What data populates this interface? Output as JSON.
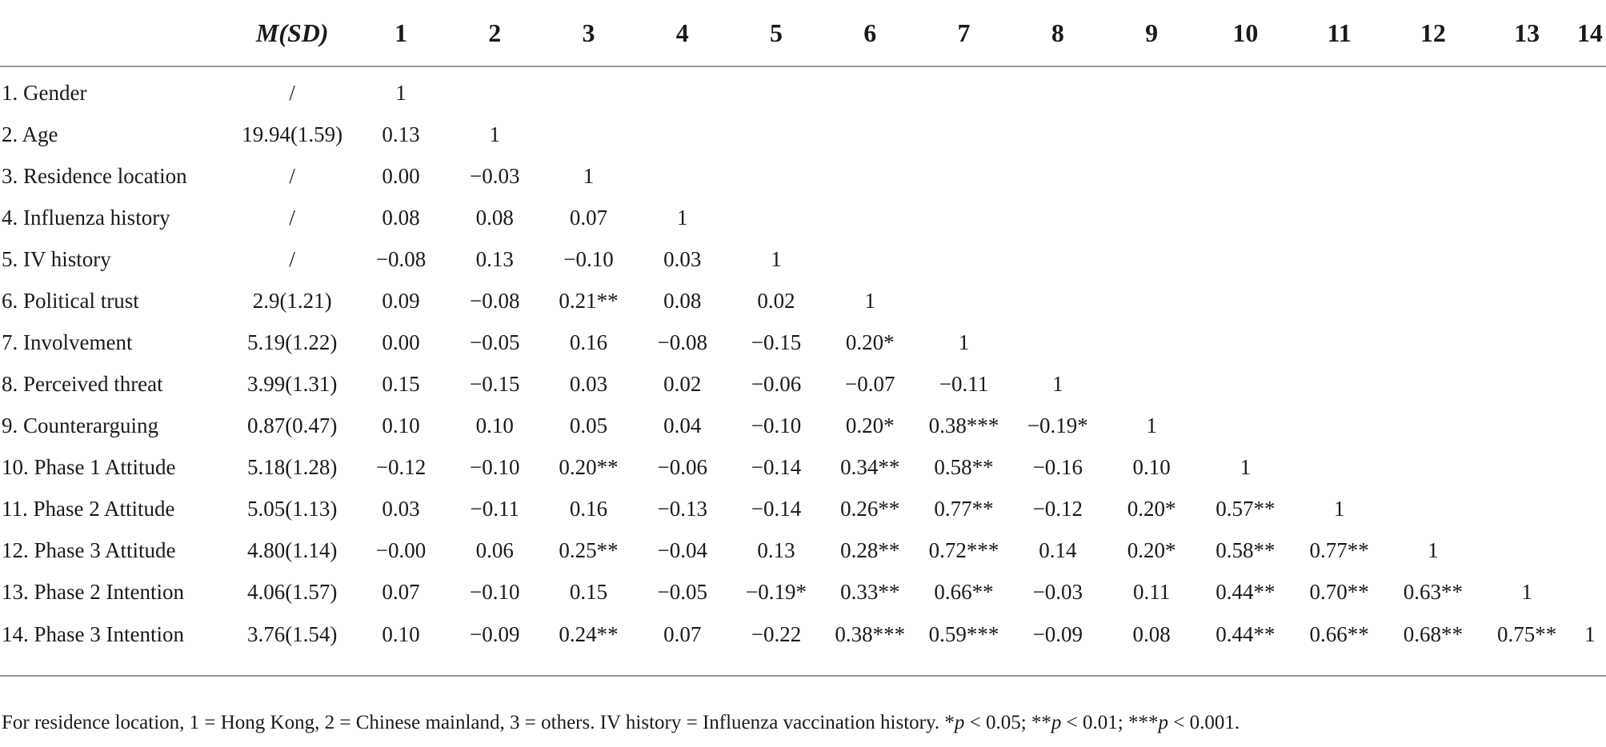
{
  "header": [
    "M(SD)",
    "1",
    "2",
    "3",
    "4",
    "5",
    "6",
    "7",
    "8",
    "9",
    "10",
    "11",
    "12",
    "13",
    "14"
  ],
  "rows": [
    {
      "label": "1. Gender",
      "msd": "/",
      "cells": [
        "1",
        "",
        "",
        "",
        "",
        "",
        "",
        "",
        "",
        "",
        "",
        "",
        "",
        ""
      ]
    },
    {
      "label": "2. Age",
      "msd": "19.94(1.59)",
      "cells": [
        "0.13",
        "1",
        "",
        "",
        "",
        "",
        "",
        "",
        "",
        "",
        "",
        "",
        "",
        ""
      ]
    },
    {
      "label": "3. Residence location",
      "msd": "/",
      "cells": [
        "0.00",
        "−0.03",
        "1",
        "",
        "",
        "",
        "",
        "",
        "",
        "",
        "",
        "",
        "",
        ""
      ]
    },
    {
      "label": "4. Influenza history",
      "msd": "/",
      "cells": [
        "0.08",
        "0.08",
        "0.07",
        "1",
        "",
        "",
        "",
        "",
        "",
        "",
        "",
        "",
        "",
        ""
      ]
    },
    {
      "label": "5. IV history",
      "msd": "/",
      "cells": [
        "−0.08",
        "0.13",
        "−0.10",
        "0.03",
        "1",
        "",
        "",
        "",
        "",
        "",
        "",
        "",
        "",
        ""
      ]
    },
    {
      "label": "6. Political trust",
      "msd": "2.9(1.21)",
      "cells": [
        "0.09",
        "−0.08",
        "0.21**",
        "0.08",
        "0.02",
        "1",
        "",
        "",
        "",
        "",
        "",
        "",
        "",
        ""
      ]
    },
    {
      "label": "7. Involvement",
      "msd": "5.19(1.22)",
      "cells": [
        "0.00",
        "−0.05",
        "0.16",
        "−0.08",
        "−0.15",
        "0.20*",
        "1",
        "",
        "",
        "",
        "",
        "",
        "",
        ""
      ]
    },
    {
      "label": "8. Perceived threat",
      "msd": "3.99(1.31)",
      "cells": [
        "0.15",
        "−0.15",
        "0.03",
        "0.02",
        "−0.06",
        "−0.07",
        "−0.11",
        "1",
        "",
        "",
        "",
        "",
        "",
        ""
      ]
    },
    {
      "label": "9. Counterarguing",
      "msd": "0.87(0.47)",
      "cells": [
        "0.10",
        "0.10",
        "0.05",
        "0.04",
        "−0.10",
        "0.20*",
        "0.38***",
        "−0.19*",
        "1",
        "",
        "",
        "",
        "",
        ""
      ]
    },
    {
      "label": "10. Phase 1 Attitude",
      "msd": "5.18(1.28)",
      "cells": [
        "−0.12",
        "−0.10",
        "0.20**",
        "−0.06",
        "−0.14",
        "0.34**",
        "0.58**",
        "−0.16",
        "0.10",
        "1",
        "",
        "",
        "",
        ""
      ]
    },
    {
      "label": "11. Phase 2 Attitude",
      "msd": "5.05(1.13)",
      "cells": [
        "0.03",
        "−0.11",
        "0.16",
        "−0.13",
        "−0.14",
        "0.26**",
        "0.77**",
        "−0.12",
        "0.20*",
        "0.57**",
        "1",
        "",
        "",
        ""
      ]
    },
    {
      "label": "12. Phase 3 Attitude",
      "msd": "4.80(1.14)",
      "cells": [
        "−0.00",
        "0.06",
        "0.25**",
        "−0.04",
        "0.13",
        "0.28**",
        "0.72***",
        "0.14",
        "0.20*",
        "0.58**",
        "0.77**",
        "1",
        "",
        ""
      ]
    },
    {
      "label": "13. Phase 2 Intention",
      "msd": "4.06(1.57)",
      "cells": [
        "0.07",
        "−0.10",
        "0.15",
        "−0.05",
        "−0.19*",
        "0.33**",
        "0.66**",
        "−0.03",
        "0.11",
        "0.44**",
        "0.70**",
        "0.63**",
        "1",
        ""
      ]
    },
    {
      "label": "14. Phase 3 Intention",
      "msd": "3.76(1.54)",
      "cells": [
        "0.10",
        "−0.09",
        "0.24**",
        "0.07",
        "−0.22",
        "0.38***",
        "0.59***",
        "−0.09",
        "0.08",
        "0.44**",
        "0.66**",
        "0.68**",
        "0.75**",
        "1"
      ]
    }
  ],
  "note": {
    "part1": "For residence location, 1 = Hong Kong, 2 = Chinese mainland, 3 = others. IV history = Influenza vaccination history. *",
    "p1": "p",
    "part2": " < 0.05; **",
    "p2": "p",
    "part3": " < 0.01; ***",
    "p3": "p",
    "part4": " < 0.001."
  }
}
